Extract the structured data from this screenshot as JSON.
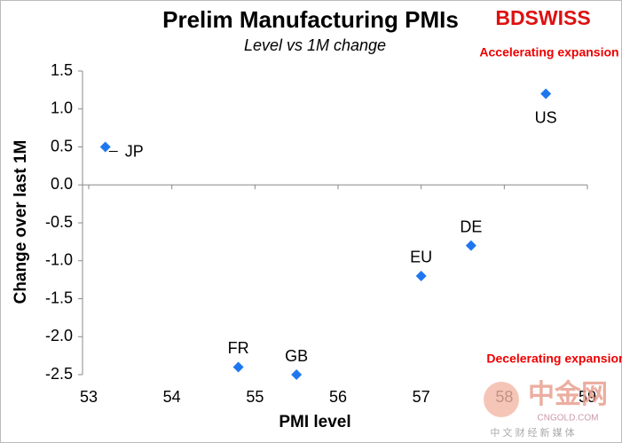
{
  "chart_data": {
    "type": "scatter",
    "title": "Prelim Manufacturing PMIs",
    "subtitle": "Level vs 1M change",
    "x_label": "PMI level",
    "y_label": "Change over last 1M",
    "brand": "BDSWISS",
    "annotations": [
      "Accelerating expansion",
      "Decelerating expansion"
    ],
    "watermark": {
      "name": "中金网",
      "site": "CNGOLD.COM",
      "tagline": "中 文 财 经 新 媒 体"
    },
    "color": "#1f77f0",
    "points": [
      "JP",
      "FR",
      "GB",
      "EU",
      "DE",
      "US"
    ],
    "x": [
      53.2,
      54.8,
      55.5,
      57.0,
      57.6,
      58.5
    ],
    "values": [
      0.5,
      -2.4,
      -2.5,
      -1.2,
      -0.8,
      1.2
    ],
    "xlim": [
      53,
      59
    ],
    "xticks": [
      53,
      54,
      55,
      56,
      57,
      58,
      59
    ],
    "ylim": [
      -2.5,
      1.5
    ],
    "yticks": [
      {
        "value": 1.5,
        "label": "1.5"
      },
      {
        "value": 1,
        "label": "1.0"
      },
      {
        "value": 0.5,
        "label": "0.5"
      },
      {
        "value": 0,
        "label": "0.0"
      },
      {
        "value": -0.5,
        "label": "-0.5"
      },
      {
        "value": -1,
        "label": "-1.0"
      },
      {
        "value": -1.5,
        "label": "-1.5"
      },
      {
        "value": -2,
        "label": "-2.0"
      },
      {
        "value": -2.5,
        "label": "-2.5"
      }
    ]
  }
}
